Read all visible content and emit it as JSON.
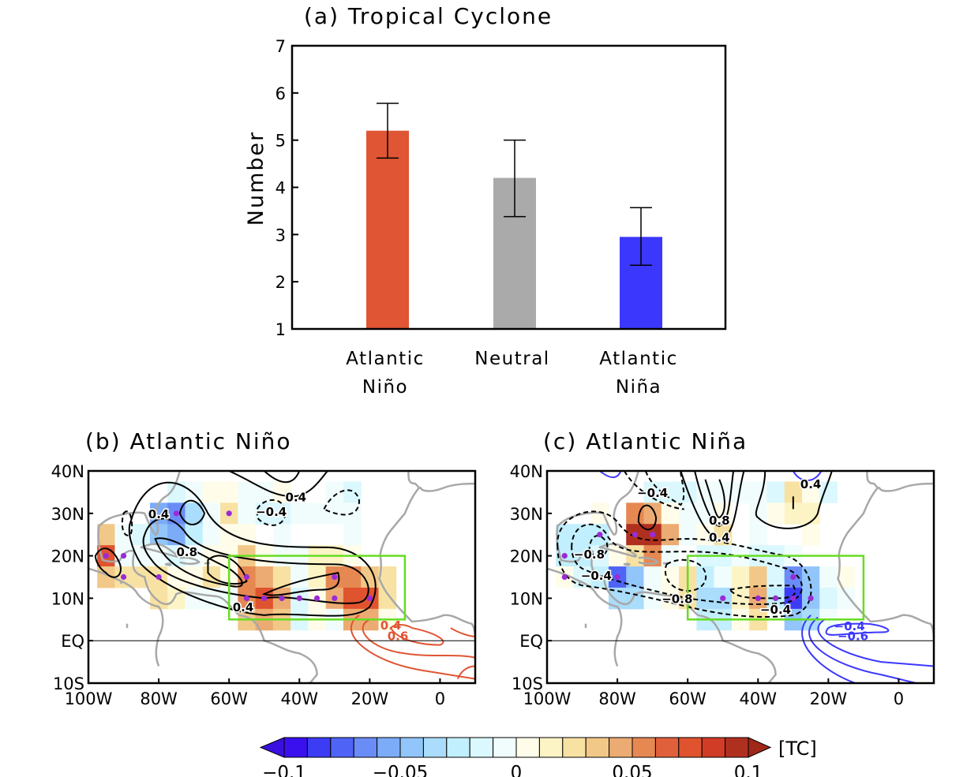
{
  "chart_data": [
    {
      "type": "bar",
      "title": "(a) Tropical Cyclone",
      "ylabel": "Number",
      "xlabel": "",
      "ylim": [
        1,
        7
      ],
      "yticks": [
        "1",
        "2",
        "3",
        "4",
        "5",
        "6",
        "7"
      ],
      "categories": [
        [
          "Atlantic",
          "Niño"
        ],
        [
          "Neutral"
        ],
        [
          "Atlantic",
          "Niña"
        ]
      ],
      "values": [
        5.2,
        4.2,
        2.95
      ],
      "error_low": [
        4.62,
        3.38,
        2.35
      ],
      "error_high": [
        5.78,
        5.0,
        3.57
      ],
      "colors": [
        "#e05533",
        "#aaaaaa",
        "#3c37fd"
      ]
    },
    {
      "type": "heatmap",
      "title": "(b) Atlantic Niño",
      "xlim": [
        -100,
        10
      ],
      "ylim": [
        -10,
        40
      ],
      "xticks": [
        "100W",
        "80W",
        "60W",
        "40W",
        "20W",
        "0"
      ],
      "yticks": [
        "40N",
        "30N",
        "20N",
        "10N",
        "EQ",
        "10S"
      ],
      "box": {
        "lon": [
          -60,
          -10
        ],
        "lat": [
          5,
          20
        ],
        "color": "#66dd22"
      },
      "contour_labels": [
        {
          "text": "0.4",
          "lon": -80,
          "lat": 30,
          "color": "#000"
        },
        {
          "text": "0.8",
          "lon": -72,
          "lat": 21,
          "color": "#000"
        },
        {
          "text": "0.4",
          "lon": -56,
          "lat": 8,
          "color": "#000"
        },
        {
          "text": "−0.4",
          "lon": -48,
          "lat": 30.5,
          "color": "#000"
        },
        {
          "text": "0.4",
          "lon": -41,
          "lat": 34,
          "color": "#000"
        },
        {
          "text": "0.4",
          "lon": -14,
          "lat": 3.8,
          "color": "#e05533"
        },
        {
          "text": "0.6",
          "lon": -12,
          "lat": 1.2,
          "color": "#e05533"
        }
      ],
      "cells": [
        [
          -75,
          35,
          -0.02
        ],
        [
          -70,
          35,
          -0.01
        ],
        [
          -65,
          35,
          0.005
        ],
        [
          -60,
          35,
          0.005
        ],
        [
          -55,
          35,
          -0.005
        ],
        [
          -50,
          35,
          -0.005
        ],
        [
          -45,
          35,
          0.005
        ],
        [
          -30,
          35,
          -0.005
        ],
        [
          -25,
          35,
          -0.02
        ],
        [
          -80,
          30,
          -0.06
        ],
        [
          -75,
          30,
          -0.07
        ],
        [
          -70,
          30,
          -0.04
        ],
        [
          -65,
          30,
          -0.01
        ],
        [
          -60,
          30,
          0.02
        ],
        [
          -55,
          30,
          -0.005
        ],
        [
          -50,
          30,
          -0.02
        ],
        [
          -45,
          30,
          -0.02
        ],
        [
          -40,
          30,
          -0.005
        ],
        [
          -35,
          30,
          -0.005
        ],
        [
          -30,
          30,
          -0.005
        ],
        [
          -25,
          30,
          -0.005
        ],
        [
          -95,
          25,
          0.03
        ],
        [
          -90,
          25,
          -0.005
        ],
        [
          -85,
          25,
          -0.02
        ],
        [
          -80,
          25,
          -0.05
        ],
        [
          -75,
          25,
          -0.06
        ],
        [
          -70,
          25,
          -0.03
        ],
        [
          -65,
          25,
          -0.01
        ],
        [
          -60,
          25,
          0.005
        ],
        [
          -55,
          25,
          0.005
        ],
        [
          -45,
          25,
          -0.005
        ],
        [
          -25,
          25,
          -0.005
        ],
        [
          -95,
          20,
          0.07
        ],
        [
          -90,
          20,
          -0.005
        ],
        [
          -85,
          20,
          -0.005
        ],
        [
          -80,
          20,
          -0.01
        ],
        [
          -75,
          20,
          -0.02
        ],
        [
          -70,
          20,
          -0.005
        ],
        [
          -65,
          20,
          0.005
        ],
        [
          -60,
          20,
          0.005
        ],
        [
          -55,
          20,
          0.03
        ],
        [
          -50,
          20,
          0.005
        ],
        [
          -45,
          20,
          -0.005
        ],
        [
          -40,
          20,
          -0.01
        ],
        [
          -35,
          20,
          0.01
        ],
        [
          -30,
          20,
          0.01
        ],
        [
          -25,
          20,
          0.005
        ],
        [
          -95,
          15,
          0.03
        ],
        [
          -90,
          15,
          0.02
        ],
        [
          -85,
          15,
          0.02
        ],
        [
          -80,
          15,
          0.02
        ],
        [
          -75,
          15,
          0.005
        ],
        [
          -70,
          15,
          0.005
        ],
        [
          -65,
          15,
          0.02
        ],
        [
          -60,
          15,
          0.005
        ],
        [
          -55,
          15,
          0.05
        ],
        [
          -50,
          15,
          0.04
        ],
        [
          -45,
          15,
          0.02
        ],
        [
          -40,
          15,
          -0.01
        ],
        [
          -35,
          15,
          0.01
        ],
        [
          -30,
          15,
          0.05
        ],
        [
          -25,
          15,
          0.05
        ],
        [
          -20,
          15,
          0.03
        ],
        [
          -15,
          15,
          0.02
        ],
        [
          -80,
          10,
          0.02
        ],
        [
          -75,
          10,
          0.01
        ],
        [
          -70,
          10,
          -0.005
        ],
        [
          -65,
          10,
          -0.01
        ],
        [
          -60,
          10,
          -0.005
        ],
        [
          -55,
          10,
          0.05
        ],
        [
          -50,
          10,
          0.07
        ],
        [
          -45,
          10,
          0.04
        ],
        [
          -40,
          10,
          -0.02
        ],
        [
          -35,
          10,
          0.005
        ],
        [
          -30,
          10,
          0.04
        ],
        [
          -25,
          10,
          0.07
        ],
        [
          -20,
          10,
          0.07
        ],
        [
          -15,
          10,
          0.02
        ],
        [
          -55,
          5,
          0.03
        ],
        [
          -50,
          5,
          0.04
        ],
        [
          -45,
          5,
          0.03
        ],
        [
          -40,
          5,
          -0.02
        ],
        [
          -35,
          5,
          0.005
        ],
        [
          -30,
          5,
          -0.005
        ],
        [
          -25,
          5,
          0.04
        ],
        [
          -20,
          5,
          0.04
        ],
        [
          -15,
          5,
          0.005
        ]
      ],
      "points": [
        [
          -95,
          20
        ],
        [
          -90,
          20
        ],
        [
          -90,
          15
        ],
        [
          -80,
          15
        ],
        [
          -75,
          30
        ],
        [
          -60,
          30
        ],
        [
          -55,
          15
        ],
        [
          -55,
          10
        ],
        [
          -50,
          10
        ],
        [
          -45,
          10
        ],
        [
          -40,
          10
        ],
        [
          -35,
          10
        ],
        [
          -30,
          10
        ],
        [
          -30,
          15
        ],
        [
          -20,
          10
        ]
      ]
    },
    {
      "type": "heatmap",
      "title": "(c) Atlantic Niña",
      "xlim": [
        -100,
        10
      ],
      "ylim": [
        -10,
        40
      ],
      "xticks": [
        "100W",
        "80W",
        "60W",
        "40W",
        "20W",
        "0"
      ],
      "yticks": [
        "40N",
        "30N",
        "20N",
        "10N",
        "EQ",
        "10S"
      ],
      "box": {
        "lon": [
          -60,
          -10
        ],
        "lat": [
          5,
          20
        ],
        "color": "#66dd22"
      },
      "contour_labels": [
        {
          "text": "−0.4",
          "lon": -70,
          "lat": 35,
          "color": "#000"
        },
        {
          "text": "0.8",
          "lon": -51,
          "lat": 28.5,
          "color": "#000"
        },
        {
          "text": "0.4",
          "lon": -51,
          "lat": 24.5,
          "color": "#000"
        },
        {
          "text": "0.4",
          "lon": -25,
          "lat": 37,
          "color": "#000"
        },
        {
          "text": "−0.8",
          "lon": -88,
          "lat": 20.5,
          "color": "#000"
        },
        {
          "text": "−0.4",
          "lon": -86,
          "lat": 15.5,
          "color": "#000"
        },
        {
          "text": "−0.8",
          "lon": -63,
          "lat": 10,
          "color": "#000"
        },
        {
          "text": "−0.4",
          "lon": -35,
          "lat": 7.5,
          "color": "#000"
        },
        {
          "text": "−0.4",
          "lon": -14,
          "lat": 3.6,
          "color": "#3c37fd"
        },
        {
          "text": "−0.6",
          "lon": -13,
          "lat": 1.2,
          "color": "#3c37fd"
        }
      ],
      "cells": [
        [
          -70,
          35,
          -0.02
        ],
        [
          -65,
          35,
          -0.02
        ],
        [
          -60,
          35,
          -0.02
        ],
        [
          -55,
          35,
          -0.005
        ],
        [
          -50,
          35,
          -0.005
        ],
        [
          -45,
          35,
          -0.005
        ],
        [
          -40,
          35,
          -0.005
        ],
        [
          -35,
          35,
          -0.02
        ],
        [
          -30,
          35,
          0.02
        ],
        [
          -25,
          35,
          0.005
        ],
        [
          -20,
          35,
          -0.02
        ],
        [
          -85,
          30,
          0.005
        ],
        [
          -75,
          30,
          0.05
        ],
        [
          -70,
          30,
          0.04
        ],
        [
          -65,
          30,
          0.005
        ],
        [
          -60,
          30,
          -0.01
        ],
        [
          -55,
          30,
          -0.005
        ],
        [
          -50,
          30,
          0.005
        ],
        [
          -40,
          30,
          -0.005
        ],
        [
          -35,
          30,
          0.005
        ],
        [
          -30,
          30,
          0.01
        ],
        [
          -25,
          30,
          0.01
        ],
        [
          -95,
          25,
          -0.03
        ],
        [
          -90,
          25,
          -0.03
        ],
        [
          -85,
          25,
          -0.03
        ],
        [
          -75,
          25,
          0.1
        ],
        [
          -70,
          25,
          0.1
        ],
        [
          -65,
          25,
          0.04
        ],
        [
          -60,
          25,
          -0.005
        ],
        [
          -55,
          25,
          0.005
        ],
        [
          -50,
          25,
          0.02
        ],
        [
          -40,
          25,
          -0.005
        ],
        [
          -25,
          25,
          0.005
        ],
        [
          -95,
          20,
          -0.03
        ],
        [
          -90,
          20,
          -0.03
        ],
        [
          -85,
          20,
          -0.02
        ],
        [
          -80,
          20,
          0.005
        ],
        [
          -75,
          20,
          0.02
        ],
        [
          -70,
          20,
          0.05
        ],
        [
          -65,
          20,
          -0.005
        ],
        [
          -55,
          20,
          -0.02
        ],
        [
          -50,
          20,
          -0.02
        ],
        [
          -45,
          20,
          -0.005
        ],
        [
          -40,
          20,
          -0.02
        ],
        [
          -35,
          20,
          -0.02
        ],
        [
          -30,
          20,
          -0.01
        ],
        [
          -95,
          15,
          0.005
        ],
        [
          -90,
          15,
          -0.02
        ],
        [
          -85,
          15,
          -0.03
        ],
        [
          -80,
          15,
          -0.08
        ],
        [
          -75,
          15,
          -0.05
        ],
        [
          -70,
          15,
          -0.005
        ],
        [
          -65,
          15,
          0.005
        ],
        [
          -60,
          15,
          0.02
        ],
        [
          -55,
          15,
          -0.03
        ],
        [
          -50,
          15,
          -0.01
        ],
        [
          -45,
          15,
          0.01
        ],
        [
          -40,
          15,
          0.03
        ],
        [
          -35,
          15,
          -0.02
        ],
        [
          -30,
          15,
          -0.07
        ],
        [
          -25,
          15,
          -0.05
        ],
        [
          -20,
          15,
          -0.005
        ],
        [
          -15,
          15,
          0.005
        ],
        [
          -80,
          10,
          -0.04
        ],
        [
          -75,
          10,
          -0.04
        ],
        [
          -70,
          10,
          -0.005
        ],
        [
          -65,
          10,
          0.005
        ],
        [
          -60,
          10,
          0.02
        ],
        [
          -55,
          10,
          -0.04
        ],
        [
          -50,
          10,
          -0.04
        ],
        [
          -45,
          10,
          0.01
        ],
        [
          -40,
          10,
          0.04
        ],
        [
          -35,
          10,
          -0.03
        ],
        [
          -30,
          10,
          -0.09
        ],
        [
          -25,
          10,
          -0.05
        ],
        [
          -20,
          10,
          -0.02
        ],
        [
          -15,
          10,
          -0.005
        ],
        [
          -55,
          5,
          -0.03
        ],
        [
          -50,
          5,
          -0.03
        ],
        [
          -45,
          5,
          0.005
        ],
        [
          -40,
          5,
          0.02
        ],
        [
          -30,
          5,
          -0.05
        ],
        [
          -25,
          5,
          -0.04
        ],
        [
          -20,
          5,
          -0.005
        ]
      ],
      "points": [
        [
          -95,
          20
        ],
        [
          -95,
          15
        ],
        [
          -85,
          25
        ],
        [
          -80,
          15
        ],
        [
          -75,
          25
        ],
        [
          -70,
          25
        ],
        [
          -50,
          10
        ],
        [
          -40,
          10
        ],
        [
          -35,
          10
        ],
        [
          -30,
          15
        ],
        [
          -30,
          10
        ],
        [
          -25,
          10
        ]
      ]
    }
  ],
  "colorbar": {
    "unit": "[TC]",
    "range": [
      -0.1,
      0.1
    ],
    "tick_labels": [
      "−0.1",
      "−0.05",
      "0",
      "0.05",
      "0.1"
    ],
    "colors": [
      "#3a10ee",
      "#3c3cf5",
      "#4f64f6",
      "#6a8cf6",
      "#7cabf8",
      "#92c6fa",
      "#aadcfb",
      "#c2effd",
      "#daf8fd",
      "#f1fdfd",
      "#fffde9",
      "#fdf4c5",
      "#f8e2a3",
      "#f2c888",
      "#ecab72",
      "#e68852",
      "#e0603c",
      "#e0532f",
      "#d03c26",
      "#b03020"
    ],
    "under_color": "#3a10e0",
    "over_color": "#a02818"
  }
}
